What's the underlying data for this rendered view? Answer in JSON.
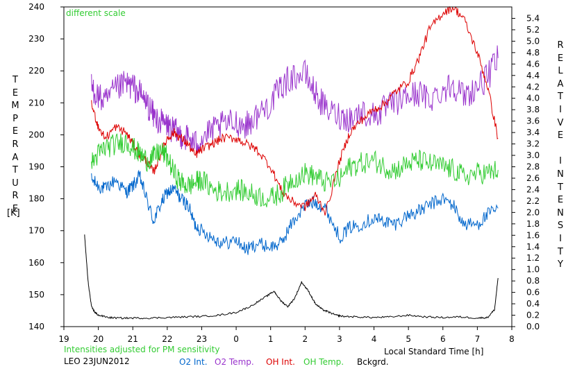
{
  "chart_data": {
    "type": "line",
    "left_axis_label": "TEMPERATURE",
    "left_axis_unit": "[K]",
    "right_axis_label": "RELATIVE INTENSITY",
    "xlabel": "Local Standard Time [h]",
    "x_tick_labels": [
      "19",
      "20",
      "21",
      "22",
      "23",
      "0",
      "1",
      "2",
      "3",
      "4",
      "5",
      "6",
      "7",
      "8"
    ],
    "y_left_range": [
      140,
      240
    ],
    "y_left_ticks": [
      140,
      150,
      160,
      170,
      180,
      190,
      200,
      210,
      220,
      230,
      240
    ],
    "y_right_range": [
      0.0,
      5.6
    ],
    "y_right_ticks": [
      "0.0",
      "0.2",
      "0.4",
      "0.6",
      "0.8",
      "1.0",
      "1.2",
      "1.4",
      "1.6",
      "1.8",
      "2.0",
      "2.2",
      "2.4",
      "2.6",
      "2.8",
      "3.0",
      "3.2",
      "3.4",
      "3.6",
      "3.8",
      "4.0",
      "4.2",
      "4.4",
      "4.6",
      "4.8",
      "5.0",
      "5.2",
      "5.4"
    ],
    "annotation_top": "different scale",
    "annotation_bottom": "Intensities adjusted for PM sensitivity",
    "station_date": "LEO 23JUN2012",
    "x_unit": "hour index from 19:00 (19 = 0 ... 8 = 13)",
    "series": [
      {
        "name": "O2 Int.",
        "color": "#0066cc",
        "axis": "left",
        "x": [
          0.8,
          1.0,
          1.2,
          1.5,
          1.8,
          2.0,
          2.2,
          2.4,
          2.6,
          2.8,
          3.0,
          3.2,
          3.4,
          3.6,
          3.8,
          4.0,
          4.3,
          4.6,
          5.0,
          5.3,
          5.6,
          6.0,
          6.3,
          6.6,
          7.0,
          7.3,
          7.6,
          8.0,
          8.3,
          8.6,
          9.0,
          9.3,
          9.6,
          10.0,
          10.3,
          10.6,
          11.0,
          11.3,
          11.6,
          12.0,
          12.3,
          12.6
        ],
        "y": [
          186,
          184,
          183,
          186,
          182,
          184,
          187,
          180,
          173,
          178,
          182,
          183,
          180,
          178,
          172,
          170,
          168,
          166,
          167,
          164,
          166,
          165,
          166,
          172,
          178,
          179,
          177,
          168,
          171,
          172,
          174,
          173,
          172,
          175,
          176,
          178,
          180,
          178,
          172,
          172,
          175,
          177
        ]
      },
      {
        "name": "O2 Temp.",
        "color": "#9933cc",
        "axis": "left",
        "x": [
          0.8,
          1.0,
          1.2,
          1.5,
          1.8,
          2.0,
          2.2,
          2.4,
          2.6,
          2.8,
          3.0,
          3.2,
          3.4,
          3.6,
          3.8,
          4.0,
          4.3,
          4.6,
          5.0,
          5.3,
          5.6,
          6.0,
          6.3,
          6.6,
          7.0,
          7.3,
          7.6,
          8.0,
          8.3,
          8.6,
          9.0,
          9.3,
          9.6,
          10.0,
          10.3,
          10.6,
          11.0,
          11.3,
          11.6,
          12.0,
          12.3,
          12.6
        ],
        "y": [
          215,
          212,
          210,
          214,
          216,
          215,
          213,
          210,
          206,
          204,
          203,
          201,
          200,
          199,
          197,
          199,
          201,
          203,
          204,
          203,
          206,
          210,
          215,
          218,
          219,
          213,
          208,
          206,
          205,
          207,
          206,
          208,
          210,
          212,
          213,
          211,
          214,
          216,
          212,
          215,
          218,
          224
        ]
      },
      {
        "name": "OH Int.",
        "color": "#dd0000",
        "axis": "right",
        "x": [
          0.8,
          1.0,
          1.2,
          1.5,
          1.8,
          2.0,
          2.2,
          2.4,
          2.6,
          2.8,
          3.0,
          3.2,
          3.4,
          3.6,
          3.8,
          4.0,
          4.3,
          4.6,
          5.0,
          5.3,
          5.6,
          6.0,
          6.3,
          6.6,
          7.0,
          7.3,
          7.6,
          8.0,
          8.3,
          8.6,
          9.0,
          9.3,
          9.6,
          10.0,
          10.3,
          10.6,
          11.0,
          11.3,
          11.6,
          12.0,
          12.3,
          12.6
        ],
        "y": [
          3.9,
          3.5,
          3.3,
          3.5,
          3.4,
          3.2,
          3.0,
          2.9,
          2.7,
          3.0,
          3.3,
          3.4,
          3.3,
          3.2,
          3.0,
          3.1,
          3.2,
          3.3,
          3.3,
          3.2,
          3.1,
          2.8,
          2.4,
          2.2,
          2.1,
          2.3,
          2.0,
          2.9,
          3.4,
          3.6,
          3.8,
          3.9,
          4.1,
          4.3,
          4.7,
          5.2,
          5.5,
          5.6,
          5.4,
          4.8,
          4.2,
          3.3
        ]
      },
      {
        "name": "OH Temp.",
        "color": "#33cc33",
        "axis": "left",
        "x": [
          0.8,
          1.0,
          1.2,
          1.5,
          1.8,
          2.0,
          2.2,
          2.4,
          2.6,
          2.8,
          3.0,
          3.2,
          3.4,
          3.6,
          3.8,
          4.0,
          4.3,
          4.6,
          5.0,
          5.3,
          5.6,
          6.0,
          6.3,
          6.6,
          7.0,
          7.3,
          7.6,
          8.0,
          8.3,
          8.6,
          9.0,
          9.3,
          9.6,
          10.0,
          10.3,
          10.6,
          11.0,
          11.3,
          11.6,
          12.0,
          12.3,
          12.6
        ],
        "y": [
          191,
          194,
          196,
          197,
          198,
          196,
          194,
          192,
          193,
          195,
          193,
          188,
          185,
          184,
          185,
          186,
          183,
          182,
          183,
          182,
          181,
          180,
          182,
          186,
          188,
          187,
          185,
          186,
          190,
          191,
          192,
          190,
          189,
          191,
          192,
          191,
          190,
          189,
          187,
          188,
          188,
          189
        ]
      },
      {
        "name": "Bckgrd.",
        "color": "#000000",
        "axis": "right",
        "x": [
          0.6,
          0.7,
          0.8,
          0.9,
          1.0,
          1.3,
          1.6,
          2.0,
          2.5,
          3.0,
          3.5,
          4.0,
          4.5,
          5.0,
          5.4,
          5.8,
          6.1,
          6.3,
          6.5,
          6.7,
          6.9,
          7.1,
          7.3,
          7.5,
          7.7,
          7.9,
          8.1,
          8.5,
          9.0,
          9.5,
          10.0,
          10.5,
          11.0,
          11.5,
          12.0,
          12.3,
          12.5,
          12.6
        ],
        "y": [
          1.6,
          0.8,
          0.35,
          0.25,
          0.2,
          0.16,
          0.15,
          0.15,
          0.15,
          0.16,
          0.17,
          0.18,
          0.2,
          0.25,
          0.35,
          0.5,
          0.62,
          0.45,
          0.35,
          0.5,
          0.78,
          0.62,
          0.4,
          0.3,
          0.25,
          0.2,
          0.18,
          0.17,
          0.16,
          0.17,
          0.2,
          0.17,
          0.16,
          0.17,
          0.15,
          0.16,
          0.3,
          0.85
        ]
      }
    ]
  }
}
